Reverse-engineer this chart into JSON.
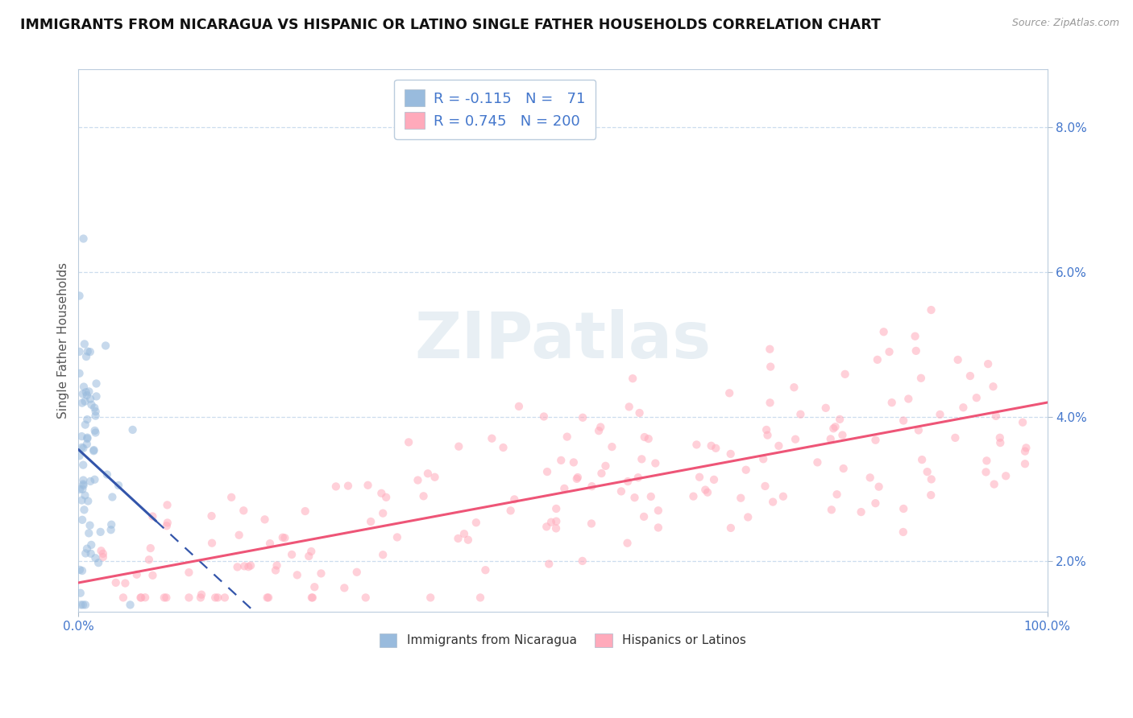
{
  "title": "IMMIGRANTS FROM NICARAGUA VS HISPANIC OR LATINO SINGLE FATHER HOUSEHOLDS CORRELATION CHART",
  "source": "Source: ZipAtlas.com",
  "ylabel": "Single Father Households",
  "xlim": [
    0.0,
    1.0
  ],
  "ylim": [
    0.013,
    0.088
  ],
  "y_ticks": [
    0.02,
    0.04,
    0.06,
    0.08
  ],
  "color_blue": "#99BBDD",
  "color_pink": "#FFAABB",
  "color_blue_line": "#3355AA",
  "color_pink_line": "#EE5577",
  "watermark": "ZIPatlas",
  "background_color": "#FFFFFF",
  "grid_color": "#CCDDEE",
  "title_fontsize": 12.5,
  "label_fontsize": 11,
  "tick_fontsize": 11,
  "tick_color": "#4477CC",
  "scatter_alpha": 0.55,
  "scatter_size": 55,
  "blue_r": -0.115,
  "blue_n": 71,
  "pink_r": 0.745,
  "pink_n": 200,
  "legend_r1_text": "R = -0.115",
  "legend_n1_text": "N =   71",
  "legend_r2_text": "R = 0.745",
  "legend_n2_text": "N = 200"
}
